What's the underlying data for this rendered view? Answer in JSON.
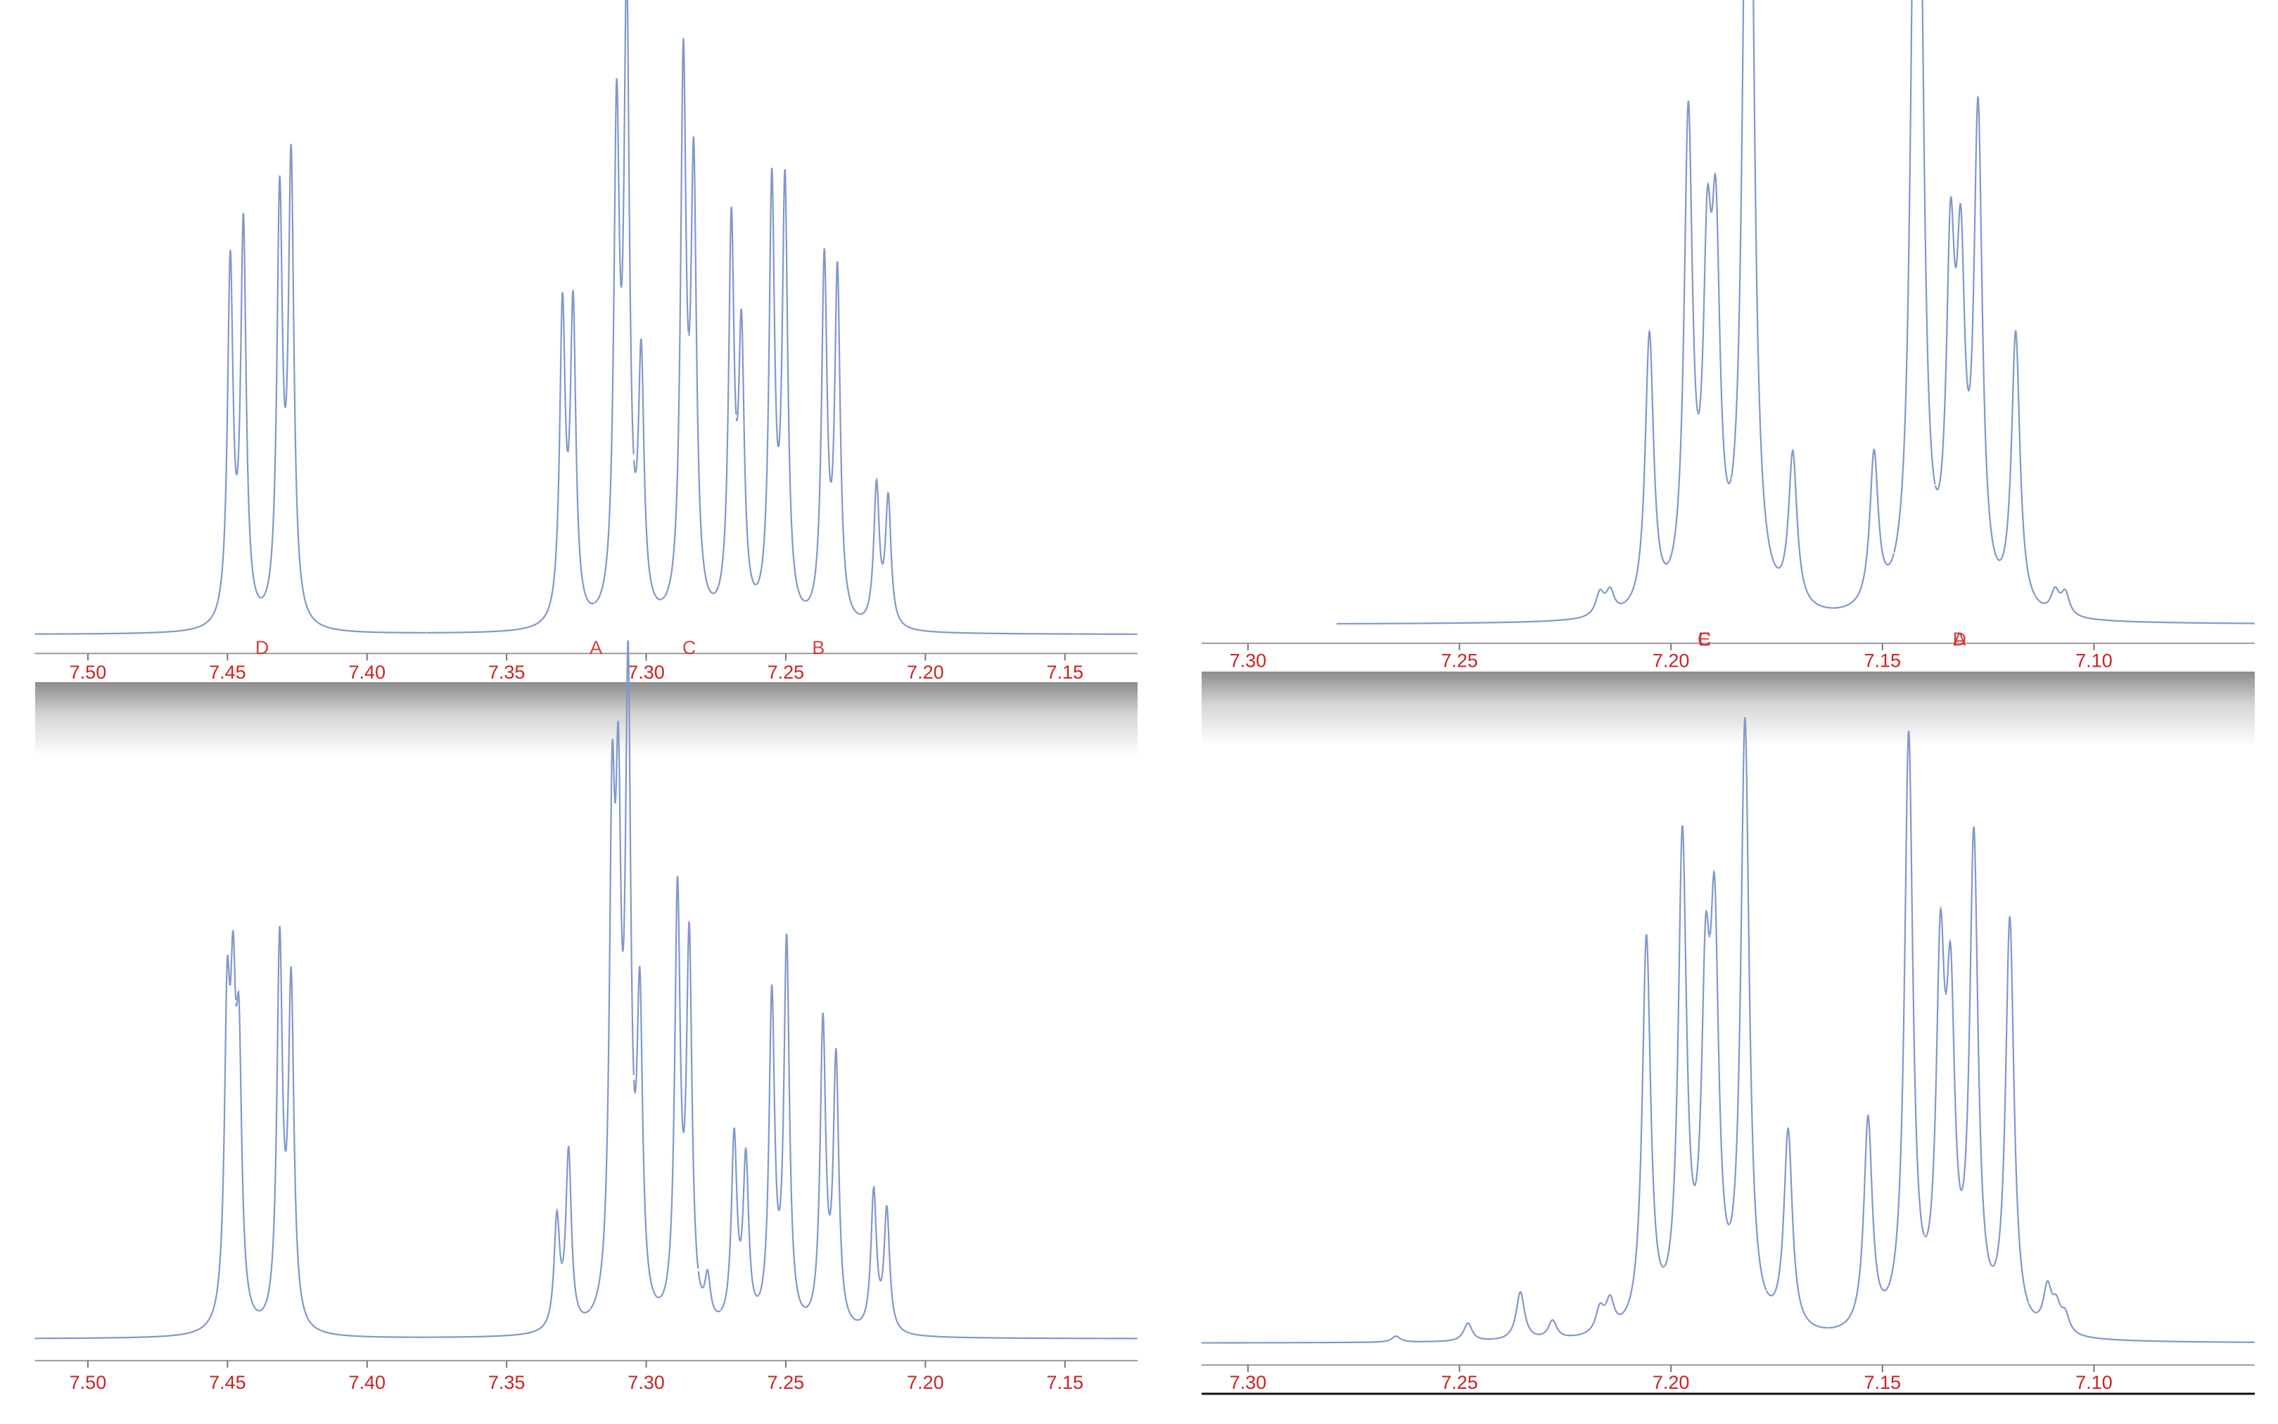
{
  "chart_data": [
    {
      "type": "spectrum",
      "color": "#8098cc",
      "x": [
        7.449,
        7.4443,
        7.4313,
        7.4272,
        7.33,
        7.3262,
        7.3106,
        7.307,
        7.3018,
        7.2867,
        7.283,
        7.2695,
        7.2659,
        7.255,
        7.2503,
        7.2362,
        7.2315,
        7.2175,
        7.2133
      ],
      "values": [
        59,
        65,
        69,
        75,
        51,
        51,
        80,
        100,
        41,
        90,
        72,
        64,
        45,
        71,
        71,
        59,
        57,
        23,
        21
      ],
      "xlim": [
        7.519,
        7.124
      ],
      "xticks": [
        {
          "value": 7.5,
          "label": "7.50"
        },
        7.45,
        {
          "value": 7.4,
          "label": "7.40"
        },
        7.35,
        {
          "value": 7.3,
          "label": "7.30"
        },
        7.25,
        {
          "value": 7.2,
          "label": "7.20"
        },
        7.15
      ],
      "annotations": [
        {
          "text": "D",
          "x": 7.4376
        },
        {
          "text": "A",
          "x": 7.318
        },
        {
          "text": "C",
          "x": 7.2846
        },
        {
          "text": "B",
          "x": 7.2383
        }
      ]
    },
    {
      "type": "spectrum",
      "color": "#8098cc",
      "x": [
        7.2168,
        7.2144,
        7.2051,
        7.1959,
        7.1914,
        7.1894,
        7.1822,
        7.1812,
        7.1712,
        7.152,
        7.1425,
        7.1411,
        7.1339,
        7.1315,
        7.1274,
        7.1185,
        7.1092,
        7.1068
      ],
      "values": [
        4,
        4,
        49,
        85,
        53,
        57,
        96,
        100,
        27,
        27,
        100,
        96,
        57,
        53,
        85,
        49,
        4,
        4
      ],
      "xlim": [
        7.311,
        7.062
      ],
      "xticks": [
        {
          "value": 7.3,
          "label": "7.30"
        },
        7.25,
        {
          "value": 7.2,
          "label": "7.20"
        },
        7.15,
        {
          "value": 7.1,
          "label": "7.10"
        }
      ],
      "annotations": [
        {
          "text": "C",
          "x": 7.1921
        },
        {
          "text": "E",
          "x": 7.1921
        },
        {
          "text": "D",
          "x": 7.1318
        },
        {
          "text": "A",
          "x": 7.1318
        }
      ]
    },
    {
      "type": "spectrum",
      "color": "#8098cc",
      "x": [
        7.4501,
        7.448,
        7.4459,
        7.4313,
        7.4272,
        7.332,
        7.3278,
        7.3122,
        7.31,
        7.3065,
        7.3023,
        7.2888,
        7.2846,
        7.278,
        7.2685,
        7.2643,
        7.255,
        7.2497,
        7.2367,
        7.232,
        7.2185,
        7.2138
      ],
      "values": [
        48,
        45,
        41,
        63,
        56,
        18,
        29,
        76,
        72,
        100,
        50,
        70,
        62,
        7,
        31,
        27,
        54,
        63,
        50,
        44,
        23,
        20
      ],
      "xlim": [
        7.519,
        7.124
      ],
      "xticks": [
        {
          "value": 7.5,
          "label": "7.50"
        },
        7.45,
        {
          "value": 7.4,
          "label": "7.40"
        },
        7.35,
        {
          "value": 7.3,
          "label": "7.30"
        },
        7.25,
        {
          "value": 7.2,
          "label": "7.20"
        },
        7.15
      ]
    },
    {
      "type": "spectrum",
      "color": "#8098cc",
      "x": [
        7.265,
        7.248,
        7.2356,
        7.228,
        7.2168,
        7.2144,
        7.2058,
        7.1973,
        7.1918,
        7.1897,
        7.1825,
        7.1723,
        7.1534,
        7.1438,
        7.1363,
        7.1339,
        7.1284,
        7.1199,
        7.111,
        7.1089,
        7.1068
      ],
      "values": [
        1,
        3,
        8,
        3,
        4,
        5,
        65,
        80,
        50,
        60,
        100,
        33,
        35,
        98,
        57,
        49,
        80,
        68,
        7,
        4,
        3
      ],
      "xlim": [
        7.311,
        7.062
      ],
      "xticks": [
        {
          "value": 7.3,
          "label": "7.30"
        },
        7.25,
        {
          "value": 7.2,
          "label": "7.20"
        },
        7.15,
        {
          "value": 7.1,
          "label": "7.10"
        }
      ]
    }
  ]
}
